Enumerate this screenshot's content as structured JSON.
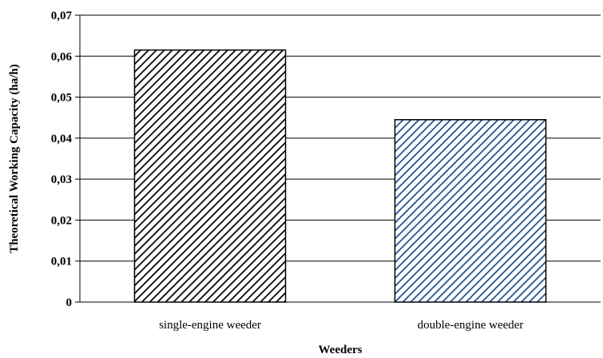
{
  "chart_data": {
    "type": "bar",
    "categories": [
      "single-engine weeder",
      "double-engine weeder"
    ],
    "values": [
      0.0615,
      0.0445
    ],
    "xlabel": "Weeders",
    "ylabel": "Theoretical Working Capacity (ha/h)",
    "ylim": [
      0,
      0.07
    ],
    "yticks": [
      0,
      0.01,
      0.02,
      0.03,
      0.04,
      0.05,
      0.06,
      0.07
    ],
    "ytick_labels": [
      "0",
      "0,01",
      "0,02",
      "0,03",
      "0,04",
      "0,05",
      "0,06",
      "0,07"
    ],
    "grid": true,
    "bar_styles": [
      {
        "pattern": "diagonal-hatch",
        "color": "#000000"
      },
      {
        "pattern": "diagonal-hatch",
        "color": "#1f4e8c"
      }
    ]
  }
}
